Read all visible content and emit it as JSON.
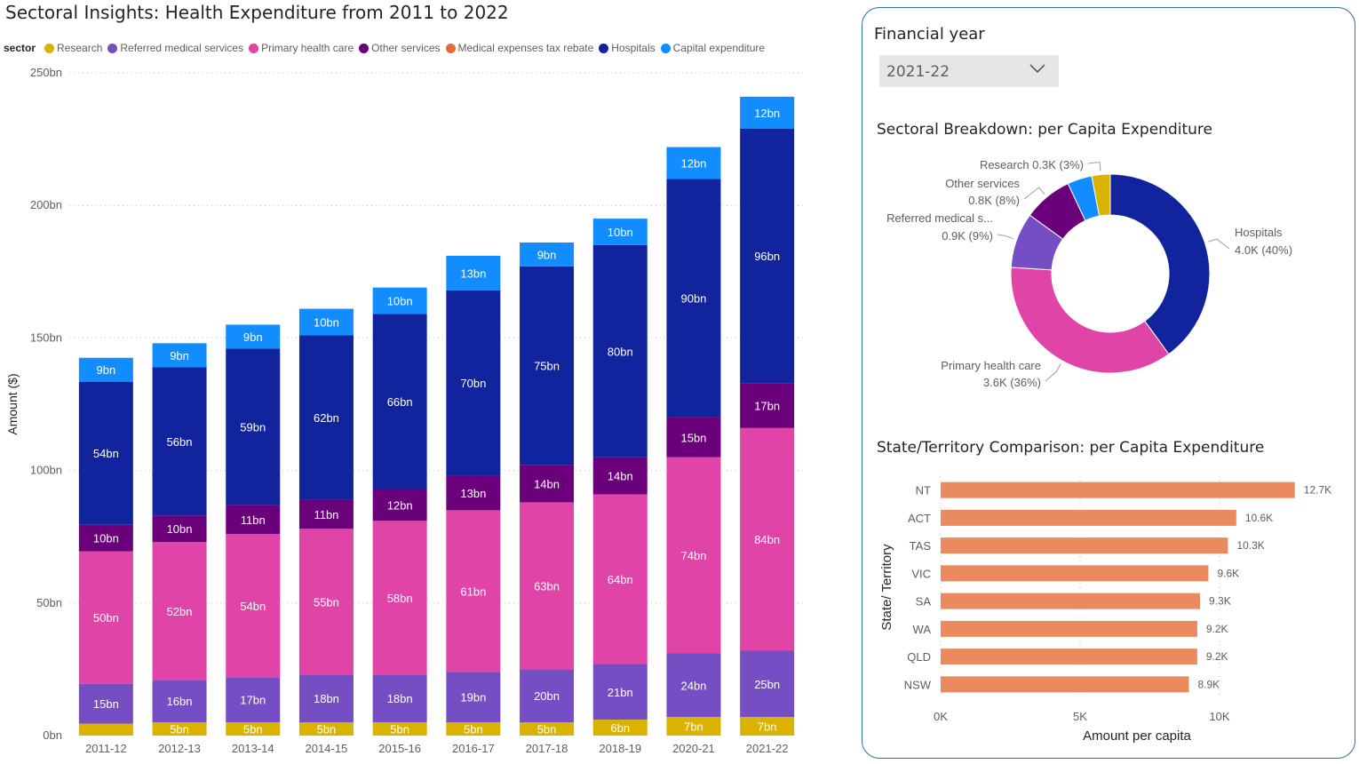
{
  "page": {
    "title": "Sectoral Insights: Health Expenditure from 2011 to 2022"
  },
  "legend": {
    "title": "sector",
    "items": [
      {
        "label": "Research",
        "color": "#D9B300"
      },
      {
        "label": "Referred medical services",
        "color": "#744EC2"
      },
      {
        "label": "Primary health care",
        "color": "#E044A7"
      },
      {
        "label": "Other services",
        "color": "#6B007B"
      },
      {
        "label": "Medical expenses tax rebate",
        "color": "#E66C37"
      },
      {
        "label": "Hospitals",
        "color": "#12239E"
      },
      {
        "label": "Capital expenditure",
        "color": "#118DFF"
      }
    ]
  },
  "slicer": {
    "title": "Financial year",
    "selected": "2021-22",
    "icon": "chevron-down-icon"
  },
  "chart_data": [
    {
      "type": "bar",
      "stacked": true,
      "ylabel": "Amount ($)",
      "xlabel": "",
      "ylim": [
        0,
        250
      ],
      "yticks": [
        "0bn",
        "50bn",
        "100bn",
        "150bn",
        "200bn",
        "250bn"
      ],
      "grid": true,
      "legend_position": "top-left",
      "categories": [
        "2011-12",
        "2012-13",
        "2013-14",
        "2014-15",
        "2015-16",
        "2016-17",
        "2017-18",
        "2018-19",
        "2020-21",
        "2021-22"
      ],
      "series": [
        {
          "name": "Research",
          "color": "#D9B300",
          "values": [
            4.5,
            5,
            5,
            5,
            5,
            5,
            5,
            6,
            7,
            7
          ],
          "labels": [
            "",
            "5bn",
            "5bn",
            "5bn",
            "5bn",
            "5bn",
            "5bn",
            "6bn",
            "7bn",
            "7bn"
          ]
        },
        {
          "name": "Referred medical services",
          "color": "#744EC2",
          "values": [
            15,
            16,
            17,
            18,
            18,
            19,
            20,
            21,
            24,
            25
          ],
          "labels": [
            "15bn",
            "16bn",
            "17bn",
            "18bn",
            "18bn",
            "19bn",
            "20bn",
            "21bn",
            "24bn",
            "25bn"
          ]
        },
        {
          "name": "Primary health care",
          "color": "#E044A7",
          "values": [
            50,
            52,
            54,
            55,
            58,
            61,
            63,
            64,
            74,
            84
          ],
          "labels": [
            "50bn",
            "52bn",
            "54bn",
            "55bn",
            "58bn",
            "61bn",
            "63bn",
            "64bn",
            "74bn",
            "84bn"
          ]
        },
        {
          "name": "Other services",
          "color": "#6B007B",
          "values": [
            10,
            10,
            11,
            11,
            12,
            13,
            14,
            14,
            15,
            17
          ],
          "labels": [
            "10bn",
            "10bn",
            "11bn",
            "11bn",
            "12bn",
            "13bn",
            "14bn",
            "14bn",
            "15bn",
            "17bn"
          ]
        },
        {
          "name": "Hospitals",
          "color": "#12239E",
          "values": [
            54,
            56,
            59,
            62,
            66,
            70,
            75,
            80,
            90,
            96
          ],
          "labels": [
            "54bn",
            "56bn",
            "59bn",
            "62bn",
            "66bn",
            "70bn",
            "75bn",
            "80bn",
            "90bn",
            "96bn"
          ]
        },
        {
          "name": "Capital expenditure",
          "color": "#118DFF",
          "values": [
            9,
            9,
            9,
            10,
            10,
            13,
            9,
            10,
            12,
            12
          ],
          "labels": [
            "9bn",
            "9bn",
            "9bn",
            "10bn",
            "10bn",
            "13bn",
            "9bn",
            "10bn",
            "12bn",
            "12bn"
          ]
        }
      ]
    },
    {
      "type": "pie",
      "donut": true,
      "title": "Sectoral Breakdown: per Capita Expenditure",
      "slices": [
        {
          "name": "Hospitals",
          "value": 4.0,
          "percent": 40,
          "color": "#12239E",
          "label": [
            "Hospitals",
            "4.0K (40%)"
          ]
        },
        {
          "name": "Primary health care",
          "value": 3.6,
          "percent": 36,
          "color": "#E044A7",
          "label": [
            "Primary health care",
            "3.6K (36%)"
          ]
        },
        {
          "name": "Referred medical services",
          "value": 0.9,
          "percent": 9,
          "color": "#744EC2",
          "label": [
            "Referred medical s...",
            "0.9K (9%)"
          ]
        },
        {
          "name": "Other services",
          "value": 0.8,
          "percent": 8,
          "color": "#6B007B",
          "label": [
            "Other services",
            "0.8K (8%)"
          ]
        },
        {
          "name": "Capital expenditure",
          "value": 0.4,
          "percent": 4,
          "color": "#118DFF",
          "label": []
        },
        {
          "name": "Research",
          "value": 0.3,
          "percent": 3,
          "color": "#D9B300",
          "label": [
            "Research 0.3K (3%)"
          ]
        }
      ]
    },
    {
      "type": "bar",
      "orientation": "horizontal",
      "title": "State/Territory Comparison: per Capita Expenditure",
      "xlabel": "Amount per capita",
      "ylabel": "State/ Territory",
      "xlim": [
        0,
        14
      ],
      "xticks": [
        "0K",
        "5K",
        "10K"
      ],
      "grid": true,
      "color": "#EB895F",
      "categories": [
        "NT",
        "ACT",
        "TAS",
        "VIC",
        "SA",
        "WA",
        "QLD",
        "NSW"
      ],
      "values": [
        12.7,
        10.6,
        10.3,
        9.6,
        9.3,
        9.2,
        9.2,
        8.9
      ],
      "labels": [
        "12.7K",
        "10.6K",
        "10.3K",
        "9.6K",
        "9.3K",
        "9.2K",
        "9.2K",
        "8.9K"
      ]
    }
  ]
}
